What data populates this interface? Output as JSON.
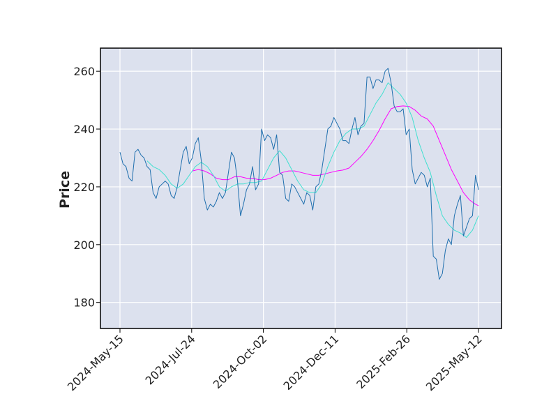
{
  "chart_data": {
    "type": "line",
    "title": "",
    "xlabel": "",
    "ylabel": "Price",
    "x_tick_labels": [
      "2024-May-15",
      "2024-Jul-24",
      "2024-Oct-02",
      "2024-Dec-11",
      "2025-Feb-26",
      "2025-May-12"
    ],
    "y_ticks": [
      180,
      200,
      220,
      240,
      260
    ],
    "ylim": [
      171,
      268
    ],
    "grid": true,
    "legend": "none",
    "colors": {
      "background": "#DCE1EE",
      "grid": "#FFFFFF",
      "price": "#1F6FAE",
      "ma_short": "#40E0D0",
      "ma_long": "#FF00FF",
      "frame": "#000000"
    },
    "series": [
      {
        "style": "price",
        "points": [
          [
            0,
            232
          ],
          [
            2,
            228
          ],
          [
            4,
            227
          ],
          [
            6,
            223
          ],
          [
            8,
            222
          ],
          [
            10,
            232
          ],
          [
            12,
            233
          ],
          [
            14,
            231
          ],
          [
            16,
            230
          ],
          [
            18,
            227
          ],
          [
            20,
            226
          ],
          [
            22,
            218
          ],
          [
            24,
            216
          ],
          [
            26,
            220
          ],
          [
            28,
            221
          ],
          [
            30,
            222
          ],
          [
            32,
            221
          ],
          [
            34,
            217
          ],
          [
            36,
            216
          ],
          [
            38,
            220
          ],
          [
            40,
            226
          ],
          [
            42,
            232
          ],
          [
            44,
            234
          ],
          [
            46,
            228
          ],
          [
            48,
            230
          ],
          [
            50,
            235
          ],
          [
            52,
            237
          ],
          [
            54,
            229
          ],
          [
            56,
            216
          ],
          [
            58,
            212
          ],
          [
            60,
            214
          ],
          [
            62,
            213
          ],
          [
            64,
            215
          ],
          [
            66,
            218
          ],
          [
            68,
            216
          ],
          [
            70,
            218
          ],
          [
            72,
            225
          ],
          [
            74,
            232
          ],
          [
            76,
            230
          ],
          [
            78,
            222
          ],
          [
            80,
            210
          ],
          [
            82,
            214
          ],
          [
            84,
            219
          ],
          [
            86,
            221
          ],
          [
            88,
            227
          ],
          [
            90,
            219
          ],
          [
            92,
            221
          ],
          [
            94,
            240
          ],
          [
            96,
            236
          ],
          [
            98,
            238
          ],
          [
            100,
            237
          ],
          [
            102,
            233
          ],
          [
            104,
            238
          ],
          [
            106,
            225
          ],
          [
            108,
            224
          ],
          [
            110,
            216
          ],
          [
            112,
            215
          ],
          [
            114,
            221
          ],
          [
            116,
            220
          ],
          [
            118,
            218
          ],
          [
            120,
            216
          ],
          [
            122,
            214
          ],
          [
            124,
            218
          ],
          [
            126,
            217
          ],
          [
            128,
            212
          ],
          [
            130,
            220
          ],
          [
            132,
            221
          ],
          [
            134,
            226
          ],
          [
            136,
            233
          ],
          [
            138,
            240
          ],
          [
            140,
            241
          ],
          [
            142,
            244
          ],
          [
            144,
            242
          ],
          [
            146,
            240
          ],
          [
            148,
            236
          ],
          [
            150,
            236
          ],
          [
            152,
            235
          ],
          [
            154,
            240
          ],
          [
            156,
            244
          ],
          [
            158,
            238
          ],
          [
            160,
            241
          ],
          [
            162,
            242
          ],
          [
            164,
            258
          ],
          [
            166,
            258
          ],
          [
            168,
            254
          ],
          [
            170,
            257
          ],
          [
            172,
            257
          ],
          [
            174,
            256
          ],
          [
            176,
            260
          ],
          [
            178,
            261
          ],
          [
            180,
            256
          ],
          [
            182,
            248
          ],
          [
            184,
            246
          ],
          [
            186,
            246
          ],
          [
            188,
            247
          ],
          [
            190,
            238
          ],
          [
            192,
            240
          ],
          [
            194,
            226
          ],
          [
            196,
            221
          ],
          [
            198,
            223
          ],
          [
            200,
            225
          ],
          [
            202,
            224
          ],
          [
            204,
            220
          ],
          [
            206,
            223
          ],
          [
            208,
            196
          ],
          [
            210,
            195
          ],
          [
            212,
            188
          ],
          [
            214,
            190
          ],
          [
            216,
            198
          ],
          [
            218,
            202
          ],
          [
            220,
            200
          ],
          [
            222,
            210
          ],
          [
            224,
            214
          ],
          [
            226,
            217
          ],
          [
            228,
            203
          ],
          [
            230,
            206
          ],
          [
            232,
            209
          ],
          [
            234,
            210
          ],
          [
            236,
            224
          ],
          [
            238,
            219
          ]
        ]
      },
      {
        "style": "ma_short",
        "points": [
          [
            18,
            229
          ],
          [
            22,
            227
          ],
          [
            26,
            226
          ],
          [
            30,
            224
          ],
          [
            34,
            221
          ],
          [
            38,
            219.5
          ],
          [
            42,
            221
          ],
          [
            46,
            224
          ],
          [
            50,
            227
          ],
          [
            54,
            228.5
          ],
          [
            58,
            227
          ],
          [
            62,
            224
          ],
          [
            66,
            220
          ],
          [
            70,
            218.5
          ],
          [
            74,
            220
          ],
          [
            78,
            221
          ],
          [
            82,
            221
          ],
          [
            86,
            221.5
          ],
          [
            90,
            221.5
          ],
          [
            94,
            222
          ],
          [
            98,
            226
          ],
          [
            102,
            230
          ],
          [
            106,
            232.5
          ],
          [
            110,
            230
          ],
          [
            114,
            226
          ],
          [
            118,
            222
          ],
          [
            122,
            219
          ],
          [
            126,
            218
          ],
          [
            130,
            218
          ],
          [
            134,
            221
          ],
          [
            138,
            227
          ],
          [
            142,
            232
          ],
          [
            146,
            236
          ],
          [
            150,
            238.5
          ],
          [
            154,
            240
          ],
          [
            158,
            240
          ],
          [
            162,
            241
          ],
          [
            166,
            245
          ],
          [
            170,
            249
          ],
          [
            174,
            252
          ],
          [
            178,
            256
          ],
          [
            182,
            254
          ],
          [
            186,
            252
          ],
          [
            190,
            249
          ],
          [
            194,
            244
          ],
          [
            198,
            236
          ],
          [
            202,
            230
          ],
          [
            206,
            225
          ],
          [
            210,
            217
          ],
          [
            214,
            210
          ],
          [
            218,
            207
          ],
          [
            222,
            205
          ],
          [
            226,
            204
          ],
          [
            230,
            202.5
          ],
          [
            234,
            205
          ],
          [
            238,
            210
          ]
        ]
      },
      {
        "style": "ma_long",
        "points": [
          [
            48,
            225.5
          ],
          [
            52,
            226
          ],
          [
            56,
            225.5
          ],
          [
            60,
            224.5
          ],
          [
            64,
            223
          ],
          [
            68,
            222.5
          ],
          [
            72,
            222.5
          ],
          [
            76,
            223.5
          ],
          [
            80,
            223.5
          ],
          [
            84,
            223
          ],
          [
            88,
            223
          ],
          [
            92,
            222.5
          ],
          [
            96,
            222.5
          ],
          [
            100,
            223
          ],
          [
            104,
            224
          ],
          [
            108,
            225
          ],
          [
            112,
            225.5
          ],
          [
            116,
            225.5
          ],
          [
            120,
            225
          ],
          [
            124,
            224.5
          ],
          [
            128,
            224
          ],
          [
            132,
            224
          ],
          [
            136,
            224.5
          ],
          [
            140,
            225
          ],
          [
            144,
            225.5
          ],
          [
            148,
            225.8
          ],
          [
            152,
            226.5
          ],
          [
            156,
            228.5
          ],
          [
            160,
            230.5
          ],
          [
            164,
            233
          ],
          [
            168,
            236
          ],
          [
            172,
            239.5
          ],
          [
            176,
            243.5
          ],
          [
            180,
            247
          ],
          [
            184,
            247.8
          ],
          [
            188,
            248
          ],
          [
            192,
            247.8
          ],
          [
            196,
            246.5
          ],
          [
            200,
            244.5
          ],
          [
            204,
            243.5
          ],
          [
            208,
            241
          ],
          [
            212,
            236
          ],
          [
            216,
            231
          ],
          [
            220,
            226
          ],
          [
            224,
            222
          ],
          [
            228,
            218
          ],
          [
            232,
            215.5
          ],
          [
            236,
            214
          ],
          [
            238,
            213.5
          ]
        ]
      }
    ]
  }
}
